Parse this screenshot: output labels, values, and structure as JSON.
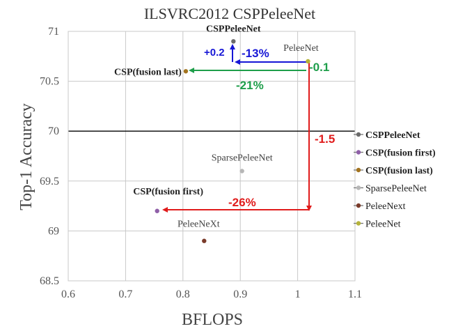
{
  "chart_data": {
    "type": "scatter",
    "title": "ILSVRC2012 CSPPeleeNet",
    "xlabel": "BFLOPS",
    "ylabel": "Top-1 Accuracy",
    "xlim": [
      0.6,
      1.1
    ],
    "ylim": [
      68.5,
      71
    ],
    "x_ticks": [
      "0.6",
      "0.7",
      "0.8",
      "0.9",
      "1",
      "1.1"
    ],
    "y_ticks": [
      "68.5",
      "69",
      "69.5",
      "70",
      "70.5",
      "71"
    ],
    "grid": true,
    "legend_position": "right",
    "series": [
      {
        "name": "CSPPeleeNet",
        "color": "#6b6b6b",
        "points": [
          {
            "x": 0.888,
            "y": 70.9
          }
        ],
        "label": "CSPPeleeNet",
        "label_bold": true
      },
      {
        "name": "CSP(fusion first)",
        "color": "#8f5fa8",
        "points": [
          {
            "x": 0.755,
            "y": 69.2
          }
        ],
        "label": "CSP(fusion first)",
        "label_bold": true
      },
      {
        "name": "CSP(fusion last)",
        "color": "#a3741f",
        "points": [
          {
            "x": 0.805,
            "y": 70.6
          }
        ],
        "label": "CSP(fusion last)",
        "label_bold": true
      },
      {
        "name": "SparsePeleeNet",
        "color": "#b7b7b7",
        "points": [
          {
            "x": 0.903,
            "y": 69.6
          }
        ],
        "label": "SparsePeleeNet",
        "label_bold": false
      },
      {
        "name": "PeleeNext",
        "color": "#7a3b2a",
        "points": [
          {
            "x": 0.837,
            "y": 68.9
          }
        ],
        "label": "PeleeNeXt",
        "label_bold": false
      },
      {
        "name": "PeleeNet",
        "color": "#b5b33a",
        "points": [
          {
            "x": 1.018,
            "y": 70.7
          }
        ],
        "label": "PeleeNet",
        "label_bold": false
      }
    ],
    "annotations": [
      {
        "text": "+0.2",
        "color": "#1616d6"
      },
      {
        "text": "-13%",
        "color": "#1616d6"
      },
      {
        "text": "-0.1",
        "color": "#1e9e4a"
      },
      {
        "text": "-21%",
        "color": "#1e9e4a"
      },
      {
        "text": "-1.5",
        "color": "#e01b1b"
      },
      {
        "text": "-26%",
        "color": "#e01b1b"
      }
    ]
  }
}
